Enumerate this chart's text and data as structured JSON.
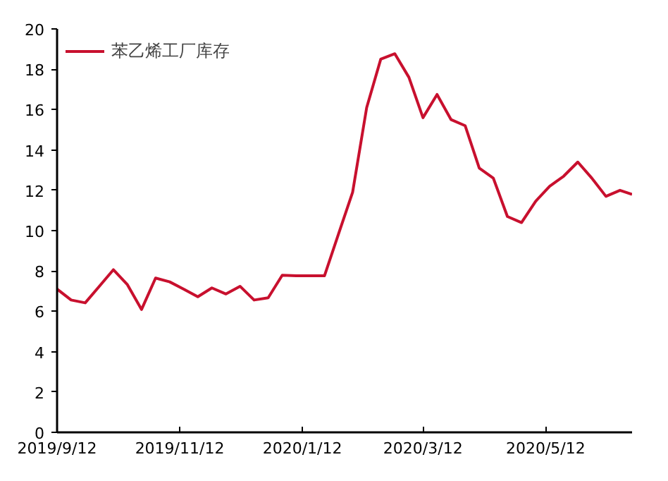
{
  "chart_data": {
    "type": "line",
    "x": [
      "2019-09-12",
      "2019-09-19",
      "2019-09-26",
      "2019-10-03",
      "2019-10-10",
      "2019-10-17",
      "2019-10-24",
      "2019-10-31",
      "2019-11-07",
      "2019-11-14",
      "2019-11-21",
      "2019-11-28",
      "2019-12-05",
      "2019-12-12",
      "2019-12-19",
      "2019-12-26",
      "2020-01-02",
      "2020-01-09",
      "2020-01-16",
      "2020-01-23",
      "2020-01-30",
      "2020-02-06",
      "2020-02-13",
      "2020-02-20",
      "2020-02-27",
      "2020-03-05",
      "2020-03-12",
      "2020-03-19",
      "2020-03-26",
      "2020-04-02",
      "2020-04-09",
      "2020-04-16",
      "2020-04-23",
      "2020-04-30",
      "2020-05-07",
      "2020-05-14",
      "2020-05-21",
      "2020-05-28",
      "2020-06-04",
      "2020-06-11",
      "2020-06-18",
      "2020-06-24"
    ],
    "series": [
      {
        "name": "苯乙烯工厂库存",
        "color": "#c8102e",
        "values": [
          7.1,
          6.56,
          6.42,
          7.24,
          8.06,
          7.32,
          6.09,
          7.65,
          7.46,
          7.1,
          6.72,
          7.16,
          6.86,
          7.24,
          6.56,
          6.67,
          7.79,
          7.76,
          7.76,
          7.76,
          9.84,
          11.9,
          16.1,
          18.5,
          18.77,
          17.6,
          15.6,
          16.75,
          15.5,
          15.2,
          13.1,
          12.6,
          10.7,
          10.4,
          11.45,
          12.2,
          12.7,
          13.4,
          12.6,
          11.7,
          12.0,
          11.8
        ]
      }
    ],
    "xlim": [
      "2019-09-12",
      "2020-06-24"
    ],
    "xticks": [
      {
        "value": "2019-09-12",
        "label": "2019/9/12"
      },
      {
        "value": "2019-11-12",
        "label": "2019/11/12"
      },
      {
        "value": "2020-01-12",
        "label": "2020/1/12"
      },
      {
        "value": "2020-03-12",
        "label": "2020/3/12"
      },
      {
        "value": "2020-05-12",
        "label": "2020/5/12"
      }
    ],
    "ylim": [
      0,
      20
    ],
    "yticks": [
      0,
      2,
      4,
      6,
      8,
      10,
      12,
      14,
      16,
      18,
      20
    ],
    "grid": false,
    "legend": "top left",
    "marker": "none",
    "line_style": "solid"
  }
}
